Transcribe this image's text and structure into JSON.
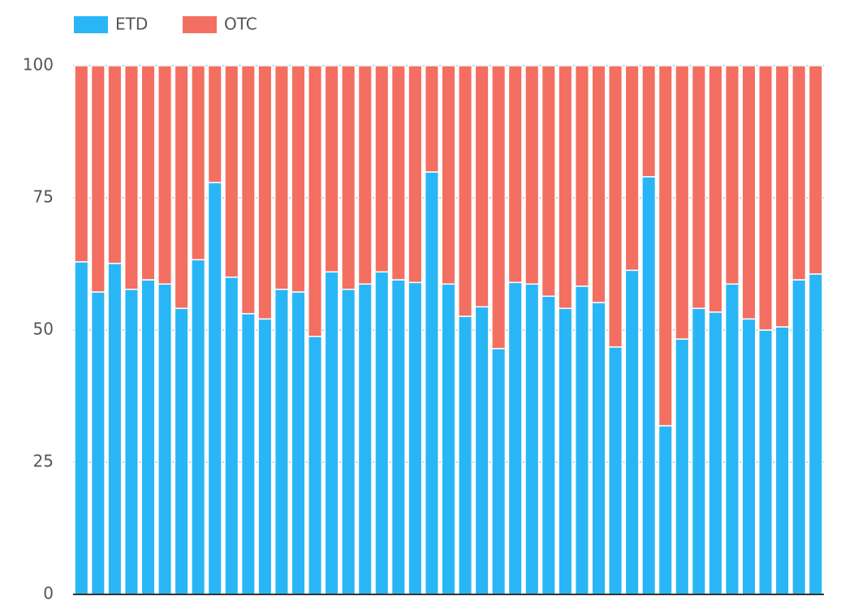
{
  "chart_data": {
    "type": "stacked_bar",
    "categories": [
      null,
      null,
      null,
      null,
      null,
      null,
      null,
      null,
      null,
      null,
      null,
      null,
      null,
      null,
      null,
      null,
      null,
      null,
      null,
      null,
      null,
      null,
      null,
      null,
      null,
      null,
      null,
      null,
      null,
      null,
      null,
      null,
      null,
      null,
      null,
      null,
      null,
      null,
      null,
      null,
      null,
      null,
      null,
      null,
      null
    ],
    "series": [
      {
        "name": "ETD",
        "color": "#29b6f6",
        "values": [
          62.9,
          57.2,
          62.6,
          57.7,
          59.5,
          58.7,
          54.1,
          63.3,
          77.9,
          60.0,
          53.1,
          52.1,
          57.7,
          57.2,
          48.8,
          61.0,
          57.7,
          58.7,
          61.0,
          59.5,
          59.0,
          79.9,
          58.7,
          52.6,
          54.4,
          46.5,
          59.0,
          58.7,
          56.4,
          54.1,
          58.3,
          55.2,
          46.8,
          61.3,
          79.0,
          31.9,
          48.3,
          54.1,
          53.4,
          58.7,
          52.1,
          50.0,
          50.6,
          59.5,
          60.6
        ]
      },
      {
        "name": "OTC",
        "color": "#f26f61",
        "values": [
          37.1,
          42.8,
          37.4,
          42.3,
          40.5,
          41.3,
          45.9,
          36.7,
          22.1,
          40.0,
          46.9,
          47.9,
          42.3,
          42.8,
          51.2,
          39.0,
          42.3,
          41.3,
          39.0,
          40.5,
          41.0,
          20.1,
          41.3,
          47.4,
          45.6,
          53.5,
          41.0,
          41.3,
          43.6,
          45.9,
          41.7,
          44.8,
          53.2,
          38.7,
          21.0,
          68.1,
          51.7,
          45.9,
          46.6,
          41.3,
          47.9,
          50.0,
          49.4,
          40.5,
          39.4
        ]
      }
    ],
    "ylim": [
      0,
      100
    ],
    "yticks": [
      0,
      25,
      50,
      75,
      100
    ],
    "grid": true,
    "legend": "top-left"
  }
}
